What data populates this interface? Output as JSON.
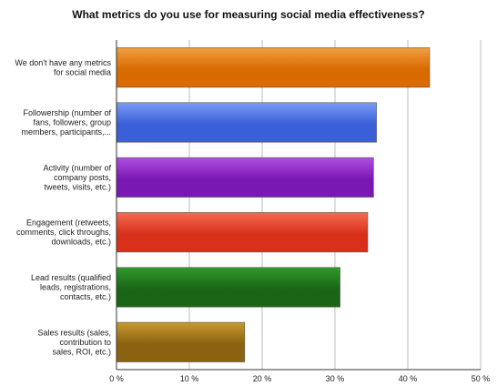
{
  "chart_data": {
    "type": "bar",
    "orientation": "horizontal",
    "title": "What metrics do you use for measuring social media effectiveness?",
    "xlabel": "",
    "ylabel": "",
    "xlim": [
      0,
      50
    ],
    "x_ticks": [
      0,
      10,
      20,
      30,
      40,
      50
    ],
    "x_tick_labels": [
      "0 %",
      "10 %",
      "20 %",
      "30 %",
      "40 %",
      "50 %"
    ],
    "grid": true,
    "legend": "none",
    "categories": [
      [
        "We don't have any metrics",
        "for social media"
      ],
      [
        "Followership (number of",
        "fans, followers, group",
        "members, participants,..."
      ],
      [
        "Activity (number of",
        "company posts,",
        "tweets, visits, etc.)"
      ],
      [
        "Engagement (retweets,",
        "comments, click throughs,",
        "downloads, etc.)"
      ],
      [
        "Lead results (qualified",
        "leads, registrations,",
        "contacts, etc.)"
      ],
      [
        "Sales results (sales,",
        "contribution to",
        "sales, ROI, etc.)"
      ]
    ],
    "values": [
      43,
      35.7,
      35.3,
      34.5,
      30.7,
      17.6
    ],
    "colors": [
      [
        "#f0a040",
        "#d86a00"
      ],
      [
        "#7a9af5",
        "#3a5fd8"
      ],
      [
        "#b24ee0",
        "#7a18b4"
      ],
      [
        "#f56a50",
        "#d8301a"
      ],
      [
        "#2f9a2a",
        "#1a6616"
      ],
      [
        "#c99a30",
        "#8a6210"
      ]
    ]
  }
}
